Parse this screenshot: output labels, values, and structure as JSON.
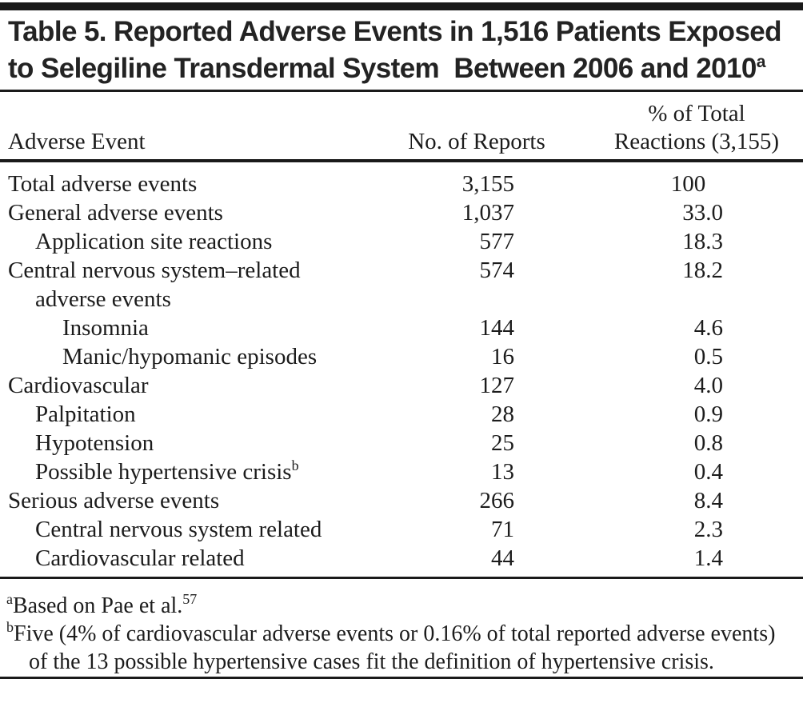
{
  "title": {
    "line1": "Table 5. Reported Adverse Events in 1,516 Patients Exposed",
    "line2": "to Selegiline Transdermal System  Between 2006 and 2010",
    "superscript": "a"
  },
  "table": {
    "columns": {
      "event": "Adverse Event",
      "reports": "No. of Reports",
      "pct_line1": "% of Total",
      "pct_line2": "Reactions (3,155)"
    },
    "rows": [
      {
        "label": "Total adverse events",
        "indent": 0,
        "reports": "3,155",
        "pct": "100"
      },
      {
        "label": "General adverse events",
        "indent": 0,
        "reports": "1,037",
        "pct": "33.0"
      },
      {
        "label": "Application site reactions",
        "indent": 1,
        "reports": "577",
        "pct": "18.3"
      },
      {
        "label": "Central nervous system–related",
        "label2": "adverse events",
        "indent": 0,
        "reports": "574",
        "pct": "18.2"
      },
      {
        "label": "Insomnia",
        "indent": 2,
        "reports": "144",
        "pct": "4.6"
      },
      {
        "label": "Manic/hypomanic episodes",
        "indent": 2,
        "reports": "16",
        "pct": "0.5"
      },
      {
        "label": "Cardiovascular",
        "indent": 0,
        "reports": "127",
        "pct": "4.0"
      },
      {
        "label": "Palpitation",
        "indent": 1,
        "reports": "28",
        "pct": "0.9"
      },
      {
        "label": "Hypotension",
        "indent": 1,
        "reports": "25",
        "pct": "0.8"
      },
      {
        "label": "Possible hypertensive crisis",
        "label_sup": "b",
        "indent": 1,
        "reports": "13",
        "pct": "0.4"
      },
      {
        "label": "Serious adverse events",
        "indent": 0,
        "reports": "266",
        "pct": "8.4"
      },
      {
        "label": "Central nervous system related",
        "indent": 1,
        "reports": "71",
        "pct": "2.3"
      },
      {
        "label": "Cardiovascular related",
        "indent": 1,
        "reports": "44",
        "pct": "1.4"
      }
    ]
  },
  "footnotes": [
    {
      "marker": "a",
      "text": "Based on Pae et al.",
      "ref_sup": "57"
    },
    {
      "marker": "b",
      "text": "Five (4% of cardiovascular adverse events or 0.16% of total reported adverse events) of the 13 possible hypertensive cases fit the definition of hypertensive crisis."
    }
  ]
}
